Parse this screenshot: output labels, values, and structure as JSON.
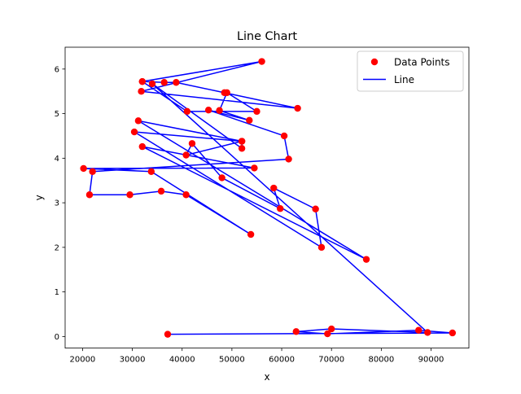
{
  "chart_data": {
    "type": "line",
    "title": "Line Chart",
    "xlabel": "x",
    "ylabel": "y",
    "xlim": [
      16500,
      97600
    ],
    "ylim": [
      -0.26,
      6.49
    ],
    "xticks": [
      20000,
      30000,
      40000,
      50000,
      60000,
      70000,
      80000,
      90000
    ],
    "yticks": [
      0,
      1,
      2,
      3,
      4,
      5,
      6
    ],
    "xtick_labels": [
      "20000",
      "30000",
      "40000",
      "50000",
      "60000",
      "70000",
      "80000",
      "90000"
    ],
    "ytick_labels": [
      "0",
      "1",
      "2",
      "3",
      "4",
      "5",
      "6"
    ],
    "grid": false,
    "legend_position": "top-right",
    "series": [
      {
        "name": "Line",
        "kind": "line",
        "color": "#0000ff",
        "x": [
          32000,
          56000,
          31800,
          63200,
          48500,
          38800,
          36400,
          32000,
          41000,
          55000,
          49000,
          47500,
          53500,
          45300,
          60500,
          61400,
          22000,
          21400,
          29500,
          35800,
          40800,
          53800,
          33800,
          20200,
          54500,
          32000,
          77000,
          31200,
          52000,
          30400,
          68000,
          66800,
          58400,
          59700,
          48000,
          42000,
          40800,
          52000,
          52000,
          34000,
          89300,
          70000,
          62900,
          69200,
          87500,
          94300,
          37100
        ],
        "y": [
          5.72,
          6.17,
          5.5,
          5.12,
          5.47,
          5.7,
          5.7,
          5.72,
          5.05,
          5.05,
          5.47,
          5.07,
          4.85,
          5.08,
          4.5,
          3.98,
          3.7,
          3.18,
          3.18,
          3.26,
          3.18,
          2.29,
          3.7,
          3.77,
          3.78,
          4.26,
          1.73,
          4.84,
          4.38,
          4.59,
          2.0,
          2.86,
          3.33,
          2.87,
          3.56,
          4.33,
          4.07,
          4.38,
          4.22,
          5.67,
          0.09,
          0.17,
          0.11,
          0.06,
          0.14,
          0.08,
          0.05
        ]
      },
      {
        "name": "Data Points",
        "kind": "scatter",
        "color": "#ff0000"
      }
    ],
    "legend": [
      "Data Points",
      "Line"
    ]
  }
}
